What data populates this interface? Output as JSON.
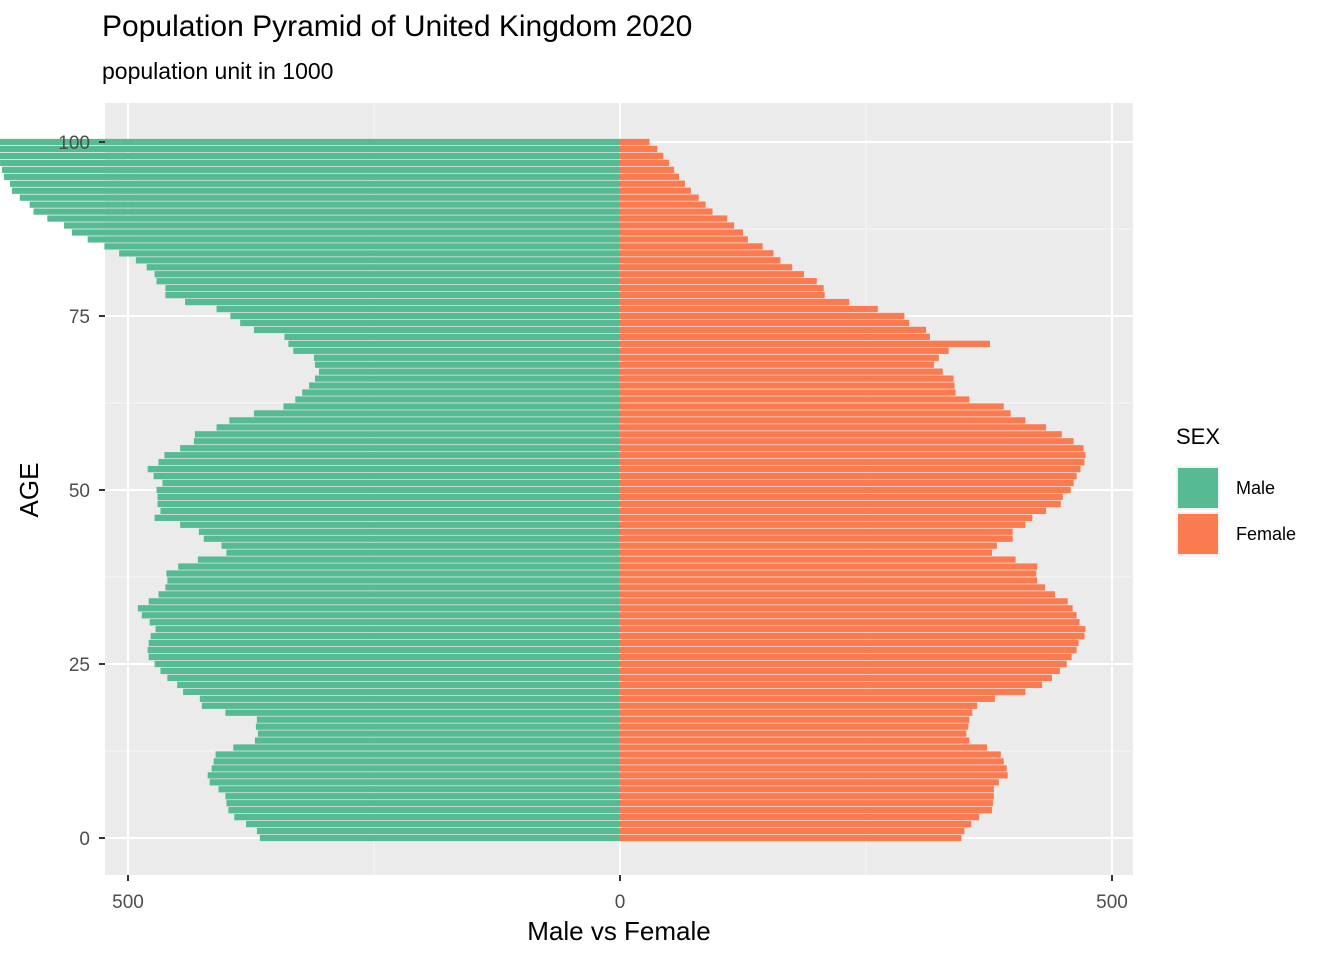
{
  "chart_data": {
    "type": "bar",
    "orientation": "horizontal-pyramid",
    "title": "Population Pyramid of United Kingdom 2020",
    "subtitle": "population unit in 1000",
    "xlabel": "Male vs Female",
    "ylabel": "AGE",
    "xlim": [
      -500,
      500
    ],
    "ylim": [
      0,
      100
    ],
    "x_ticks": [
      {
        "value": -500,
        "label": "500"
      },
      {
        "value": 0,
        "label": "0"
      },
      {
        "value": 500,
        "label": "500"
      }
    ],
    "y_ticks": [
      {
        "value": 0,
        "label": "0"
      },
      {
        "value": 25,
        "label": "25"
      },
      {
        "value": 50,
        "label": "50"
      },
      {
        "value": 75,
        "label": "75"
      },
      {
        "value": 100,
        "label": "100"
      }
    ],
    "grid": true,
    "legend": {
      "title": "SEX",
      "position": "right",
      "entries": [
        {
          "name": "Male",
          "color": "#56ba93"
        },
        {
          "name": "Female",
          "color": "#fb7b51"
        }
      ]
    },
    "ages": [
      0,
      1,
      2,
      3,
      4,
      5,
      6,
      7,
      8,
      9,
      10,
      11,
      12,
      13,
      14,
      15,
      16,
      17,
      18,
      19,
      20,
      21,
      22,
      23,
      24,
      25,
      26,
      27,
      28,
      29,
      30,
      31,
      32,
      33,
      34,
      35,
      36,
      37,
      38,
      39,
      40,
      41,
      42,
      43,
      44,
      45,
      46,
      47,
      48,
      49,
      50,
      51,
      52,
      53,
      54,
      55,
      56,
      57,
      58,
      59,
      60,
      61,
      62,
      63,
      64,
      65,
      66,
      67,
      68,
      69,
      70,
      71,
      72,
      73,
      74,
      75,
      76,
      77,
      78,
      79,
      80,
      81,
      82,
      83,
      84,
      85,
      86,
      87,
      88,
      89,
      90,
      91,
      92,
      93,
      94,
      95,
      96,
      97,
      98,
      99,
      100
    ],
    "series": [
      {
        "name": "Male",
        "color": "#56ba93",
        "values": [
          366,
          369,
          380,
          392,
          398,
          400,
          401,
          408,
          417,
          419,
          415,
          413,
          411,
          393,
          371,
          368,
          370,
          369,
          401,
          425,
          427,
          444,
          450,
          460,
          467,
          473,
          479,
          480,
          479,
          477,
          472,
          478,
          486,
          490,
          479,
          469,
          462,
          460,
          461,
          449,
          429,
          400,
          405,
          423,
          428,
          447,
          473,
          467,
          470,
          470,
          471,
          465,
          474,
          480,
          469,
          463,
          447,
          433,
          432,
          410,
          397,
          372,
          342,
          330,
          323,
          316,
          310,
          306,
          310,
          311,
          332,
          337,
          341,
          372,
          386,
          396,
          410,
          442,
          462,
          462,
          471,
          473,
          481,
          492,
          509,
          524,
          541,
          557,
          565,
          582,
          596,
          600,
          610,
          618,
          620,
          626,
          628,
          630,
          632,
          634,
          641
        ]
      },
      {
        "name": "Female",
        "color": "#fb7b51",
        "values": [
          347,
          350,
          357,
          365,
          378,
          379,
          380,
          380,
          385,
          394,
          393,
          390,
          387,
          373,
          355,
          352,
          354,
          355,
          358,
          363,
          381,
          412,
          429,
          439,
          447,
          454,
          459,
          464,
          466,
          472,
          473,
          467,
          464,
          460,
          455,
          442,
          432,
          424,
          423,
          424,
          402,
          378,
          383,
          399,
          399,
          412,
          419,
          433,
          448,
          450,
          458,
          461,
          464,
          468,
          472,
          473,
          471,
          461,
          449,
          433,
          412,
          397,
          390,
          355,
          341,
          340,
          339,
          328,
          319,
          324,
          334,
          376,
          315,
          311,
          294,
          289,
          262,
          233,
          208,
          207,
          200,
          187,
          175,
          163,
          156,
          145,
          130,
          125,
          116,
          109,
          94,
          87,
          80,
          72,
          66,
          60,
          55,
          50,
          44,
          38,
          30
        ]
      }
    ]
  }
}
